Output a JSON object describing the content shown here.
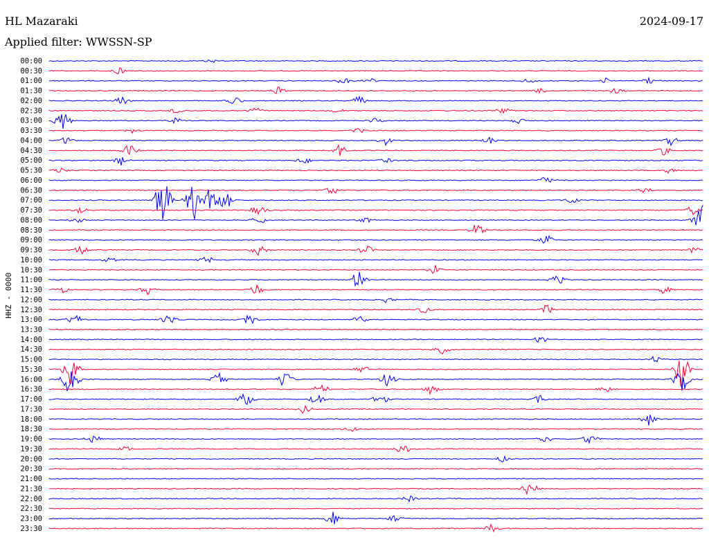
{
  "header": {
    "station": "HL Mazaraki",
    "date": "2024-09-17",
    "filter": "Applied filter: WWSSN-SP"
  },
  "chart_data": {
    "type": "line",
    "title": "HL Mazaraki",
    "ylabel": "HHZ - 0000",
    "colors": [
      "#0000ff",
      "#ff0033"
    ],
    "rows": [
      "00:00",
      "00:30",
      "01:00",
      "01:30",
      "02:00",
      "02:30",
      "03:00",
      "03:30",
      "04:00",
      "04:30",
      "05:00",
      "05:30",
      "06:00",
      "06:30",
      "07:00",
      "07:30",
      "08:00",
      "08:30",
      "09:00",
      "09:30",
      "10:00",
      "10:30",
      "11:00",
      "11:30",
      "12:00",
      "12:30",
      "13:00",
      "13:30",
      "14:00",
      "14:30",
      "15:00",
      "15:30",
      "16:00",
      "16:30",
      "17:00",
      "17:30",
      "18:00",
      "18:30",
      "19:00",
      "19:30",
      "20:00",
      "20:30",
      "21:00",
      "21:30",
      "22:00",
      "22:30",
      "23:00",
      "23:30"
    ],
    "events": [
      {
        "row": "00:00",
        "minute": 7.5,
        "amp": 0.3
      },
      {
        "row": "00:30",
        "minute": 3.2,
        "amp": 0.8
      },
      {
        "row": "01:00",
        "minute": 13.5,
        "amp": 0.6
      },
      {
        "row": "01:00",
        "minute": 14.8,
        "amp": 0.4
      },
      {
        "row": "01:00",
        "minute": 22,
        "amp": 0.5
      },
      {
        "row": "01:00",
        "minute": 27.5,
        "amp": 0.6
      },
      {
        "row": "01:00",
        "minute": 25.5,
        "amp": 0.5
      },
      {
        "row": "01:30",
        "minute": 10.5,
        "amp": 0.7
      },
      {
        "row": "01:30",
        "minute": 22.5,
        "amp": 0.5
      },
      {
        "row": "01:30",
        "minute": 26,
        "amp": 0.6
      },
      {
        "row": "02:00",
        "minute": 3.3,
        "amp": 0.9
      },
      {
        "row": "02:00",
        "minute": 8.5,
        "amp": 0.8
      },
      {
        "row": "02:00",
        "minute": 14.2,
        "amp": 1.0
      },
      {
        "row": "02:30",
        "minute": 5.8,
        "amp": 0.5
      },
      {
        "row": "02:30",
        "minute": 9.5,
        "amp": 0.6
      },
      {
        "row": "02:30",
        "minute": 13.2,
        "amp": 0.5
      },
      {
        "row": "02:30",
        "minute": 20.8,
        "amp": 0.6
      },
      {
        "row": "03:00",
        "minute": 0.6,
        "amp": 2.2
      },
      {
        "row": "03:00",
        "minute": 5.8,
        "amp": 0.6
      },
      {
        "row": "03:00",
        "minute": 15,
        "amp": 0.5
      },
      {
        "row": "03:00",
        "minute": 21.5,
        "amp": 0.6
      },
      {
        "row": "03:30",
        "minute": 3.8,
        "amp": 0.5
      },
      {
        "row": "03:30",
        "minute": 14.2,
        "amp": 0.5
      },
      {
        "row": "04:00",
        "minute": 0.8,
        "amp": 0.7
      },
      {
        "row": "04:00",
        "minute": 15.4,
        "amp": 0.8
      },
      {
        "row": "04:00",
        "minute": 20.2,
        "amp": 0.6
      },
      {
        "row": "04:00",
        "minute": 28.5,
        "amp": 0.9
      },
      {
        "row": "04:30",
        "minute": 3.7,
        "amp": 1.3
      },
      {
        "row": "04:30",
        "minute": 13.3,
        "amp": 1.0
      },
      {
        "row": "04:30",
        "minute": 28.2,
        "amp": 0.8
      },
      {
        "row": "05:00",
        "minute": 3.3,
        "amp": 0.8
      },
      {
        "row": "05:00",
        "minute": 11.7,
        "amp": 0.7
      },
      {
        "row": "05:00",
        "minute": 15.5,
        "amp": 0.6
      },
      {
        "row": "05:30",
        "minute": 0.5,
        "amp": 0.5
      },
      {
        "row": "05:30",
        "minute": 28.4,
        "amp": 0.6
      },
      {
        "row": "06:00",
        "minute": 22.8,
        "amp": 0.9
      },
      {
        "row": "06:30",
        "minute": 13,
        "amp": 0.7
      },
      {
        "row": "06:30",
        "minute": 27.3,
        "amp": 0.8
      },
      {
        "row": "07:00",
        "minute": 5.2,
        "amp": 4.5
      },
      {
        "row": "07:00",
        "minute": 6.6,
        "amp": 4.0
      },
      {
        "row": "07:00",
        "minute": 7.3,
        "amp": 2.5
      },
      {
        "row": "07:00",
        "minute": 8.1,
        "amp": 2.2
      },
      {
        "row": "07:00",
        "minute": 24,
        "amp": 0.6
      },
      {
        "row": "07:30",
        "minute": 1.4,
        "amp": 0.6
      },
      {
        "row": "07:30",
        "minute": 9.6,
        "amp": 1.0
      },
      {
        "row": "07:30",
        "minute": 29.5,
        "amp": 0.8
      },
      {
        "row": "08:00",
        "minute": 1.3,
        "amp": 0.5
      },
      {
        "row": "08:00",
        "minute": 9.6,
        "amp": 0.8
      },
      {
        "row": "08:00",
        "minute": 14.5,
        "amp": 0.5
      },
      {
        "row": "08:00",
        "minute": 29.9,
        "amp": 3.0
      },
      {
        "row": "08:30",
        "minute": 19.6,
        "amp": 1.2
      },
      {
        "row": "09:00",
        "minute": 22.8,
        "amp": 1.0
      },
      {
        "row": "09:30",
        "minute": 1.5,
        "amp": 0.9
      },
      {
        "row": "09:30",
        "minute": 9.6,
        "amp": 1.0
      },
      {
        "row": "09:30",
        "minute": 14.5,
        "amp": 0.9
      },
      {
        "row": "09:30",
        "minute": 29.5,
        "amp": 0.7
      },
      {
        "row": "10:00",
        "minute": 2.8,
        "amp": 0.6
      },
      {
        "row": "10:00",
        "minute": 7.2,
        "amp": 1.0
      },
      {
        "row": "10:30",
        "minute": 17.7,
        "amp": 0.8
      },
      {
        "row": "11:00",
        "minute": 14.2,
        "amp": 1.8
      },
      {
        "row": "11:00",
        "minute": 23.3,
        "amp": 0.9
      },
      {
        "row": "11:30",
        "minute": 0.5,
        "amp": 0.8
      },
      {
        "row": "11:30",
        "minute": 4.5,
        "amp": 0.8
      },
      {
        "row": "11:30",
        "minute": 9.5,
        "amp": 1.0
      },
      {
        "row": "11:30",
        "minute": 28.2,
        "amp": 0.8
      },
      {
        "row": "12:00",
        "minute": 15.5,
        "amp": 0.6
      },
      {
        "row": "12:30",
        "minute": 17.2,
        "amp": 0.7
      },
      {
        "row": "12:30",
        "minute": 22.8,
        "amp": 0.9
      },
      {
        "row": "13:00",
        "minute": 1.2,
        "amp": 1.0
      },
      {
        "row": "13:00",
        "minute": 5.5,
        "amp": 1.0
      },
      {
        "row": "13:00",
        "minute": 9.2,
        "amp": 1.0
      },
      {
        "row": "13:00",
        "minute": 14.2,
        "amp": 0.9
      },
      {
        "row": "14:00",
        "minute": 22.5,
        "amp": 0.6
      },
      {
        "row": "14:30",
        "minute": 18,
        "amp": 0.9
      },
      {
        "row": "15:00",
        "minute": 27.8,
        "amp": 0.8
      },
      {
        "row": "15:30",
        "minute": 14.4,
        "amp": 0.8
      },
      {
        "row": "15:30",
        "minute": 1.0,
        "amp": 3.0
      },
      {
        "row": "15:30",
        "minute": 29,
        "amp": 3.5
      },
      {
        "row": "16:00",
        "minute": 1.0,
        "amp": 3.5
      },
      {
        "row": "16:00",
        "minute": 7.8,
        "amp": 1.5
      },
      {
        "row": "16:00",
        "minute": 10.8,
        "amp": 1.8
      },
      {
        "row": "16:00",
        "minute": 15.5,
        "amp": 1.2
      },
      {
        "row": "16:00",
        "minute": 29,
        "amp": 3.0
      },
      {
        "row": "16:30",
        "minute": 12.5,
        "amp": 1.0
      },
      {
        "row": "16:30",
        "minute": 17.5,
        "amp": 1.0
      },
      {
        "row": "16:30",
        "minute": 25.5,
        "amp": 0.8
      },
      {
        "row": "17:00",
        "minute": 9.0,
        "amp": 1.2
      },
      {
        "row": "17:00",
        "minute": 12.3,
        "amp": 1.0
      },
      {
        "row": "17:00",
        "minute": 15.2,
        "amp": 1.0
      },
      {
        "row": "17:00",
        "minute": 22.5,
        "amp": 0.7
      },
      {
        "row": "17:30",
        "minute": 11.7,
        "amp": 0.8
      },
      {
        "row": "18:00",
        "minute": 27.5,
        "amp": 1.2
      },
      {
        "row": "18:30",
        "minute": 13.8,
        "amp": 0.8
      },
      {
        "row": "19:00",
        "minute": 2.0,
        "amp": 0.8
      },
      {
        "row": "19:00",
        "minute": 22.7,
        "amp": 1.0
      },
      {
        "row": "19:00",
        "minute": 24.8,
        "amp": 1.0
      },
      {
        "row": "19:30",
        "minute": 3.5,
        "amp": 0.5
      },
      {
        "row": "19:30",
        "minute": 16.2,
        "amp": 1.0
      },
      {
        "row": "20:00",
        "minute": 20.8,
        "amp": 0.6
      },
      {
        "row": "21:30",
        "minute": 22.0,
        "amp": 1.5
      },
      {
        "row": "22:00",
        "minute": 16.5,
        "amp": 0.6
      },
      {
        "row": "23:00",
        "minute": 13.0,
        "amp": 1.2
      },
      {
        "row": "23:00",
        "minute": 15.8,
        "amp": 0.6
      },
      {
        "row": "23:30",
        "minute": 20.3,
        "amp": 0.8
      }
    ]
  }
}
